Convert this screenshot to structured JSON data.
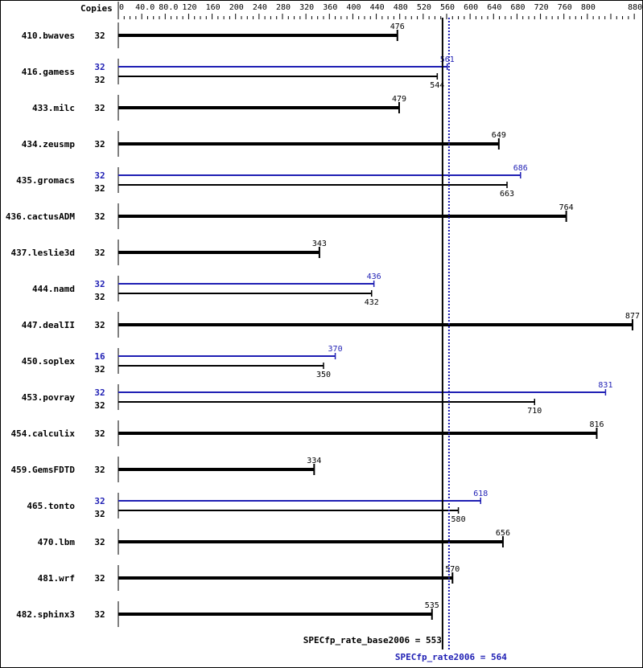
{
  "chart_data": {
    "type": "bar",
    "orientation": "horizontal",
    "axis_label": "Copies",
    "xlim": [
      0,
      880
    ],
    "tick_labels": [
      "0",
      "40.0",
      "80.0",
      "120",
      "160",
      "200",
      "240",
      "280",
      "320",
      "360",
      "400",
      "440",
      "480",
      "520",
      "560",
      "600",
      "640",
      "680",
      "720",
      "760",
      "800",
      "880"
    ],
    "tick_values": [
      0,
      40,
      80,
      120,
      160,
      200,
      240,
      280,
      320,
      360,
      400,
      440,
      480,
      520,
      560,
      600,
      640,
      680,
      720,
      760,
      800,
      880
    ],
    "colors": {
      "base": "#000000",
      "peak": "#1f1fb4"
    },
    "benchmarks": [
      {
        "name": "410.bwaves",
        "base_copies": "32",
        "base": 476
      },
      {
        "name": "416.gamess",
        "peak_copies": "32",
        "peak": 561,
        "base_copies": "32",
        "base": 544
      },
      {
        "name": "433.milc",
        "base_copies": "32",
        "base": 479
      },
      {
        "name": "434.zeusmp",
        "base_copies": "32",
        "base": 649
      },
      {
        "name": "435.gromacs",
        "peak_copies": "32",
        "peak": 686,
        "base_copies": "32",
        "base": 663
      },
      {
        "name": "436.cactusADM",
        "base_copies": "32",
        "base": 764
      },
      {
        "name": "437.leslie3d",
        "base_copies": "32",
        "base": 343
      },
      {
        "name": "444.namd",
        "peak_copies": "32",
        "peak": 436,
        "base_copies": "32",
        "base": 432
      },
      {
        "name": "447.dealII",
        "base_copies": "32",
        "base": 877
      },
      {
        "name": "450.soplex",
        "peak_copies": "16",
        "peak": 370,
        "base_copies": "32",
        "base": 350
      },
      {
        "name": "453.povray",
        "peak_copies": "32",
        "peak": 831,
        "base_copies": "32",
        "base": 710
      },
      {
        "name": "454.calculix",
        "base_copies": "32",
        "base": 816
      },
      {
        "name": "459.GemsFDTD",
        "base_copies": "32",
        "base": 334
      },
      {
        "name": "465.tonto",
        "peak_copies": "32",
        "peak": 618,
        "base_copies": "32",
        "base": 580
      },
      {
        "name": "470.lbm",
        "base_copies": "32",
        "base": 656
      },
      {
        "name": "481.wrf",
        "base_copies": "32",
        "base": 570
      },
      {
        "name": "482.sphinx3",
        "base_copies": "32",
        "base": 535
      }
    ],
    "reference_lines": [
      {
        "label": "SPECfp_rate_base2006 = 553",
        "value": 553,
        "style": "solid",
        "color": "#000000"
      },
      {
        "label": "SPECfp_rate2006 = 564",
        "value": 564,
        "style": "dotted",
        "color": "#1f1fb4"
      }
    ]
  }
}
